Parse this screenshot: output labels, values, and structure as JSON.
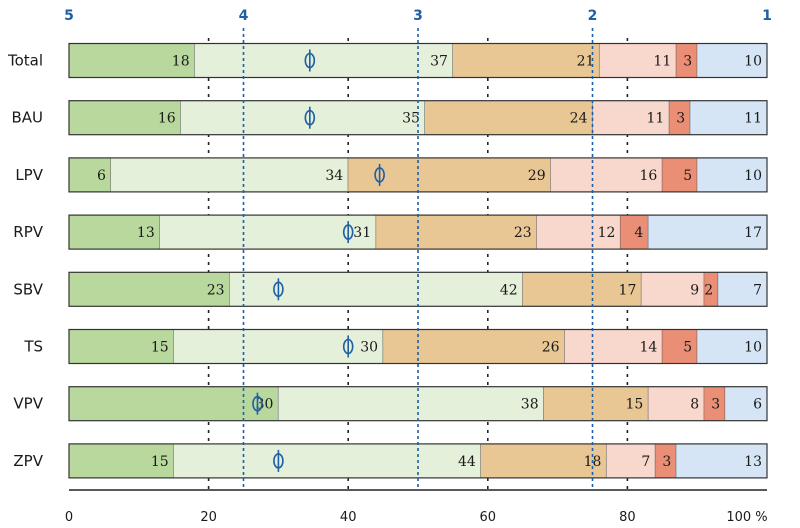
{
  "chart_data": {
    "type": "bar",
    "stacked": true,
    "orientation": "horizontal",
    "categories": [
      "Total",
      "BAU",
      "LPV",
      "RPV",
      "SBV",
      "TS",
      "VPV",
      "ZPV"
    ],
    "series": [
      {
        "values": [
          18,
          16,
          6,
          13,
          23,
          15,
          30,
          15
        ],
        "color": "#b8d89e"
      },
      {
        "values": [
          37,
          35,
          34,
          31,
          42,
          30,
          38,
          44
        ],
        "color": "#e4f0da"
      },
      {
        "values": [
          21,
          24,
          29,
          23,
          17,
          26,
          15,
          18
        ],
        "color": "#e8c795"
      },
      {
        "values": [
          11,
          11,
          16,
          12,
          9,
          14,
          8,
          7
        ],
        "color": "#f8d7cc"
      },
      {
        "values": [
          3,
          3,
          5,
          4,
          2,
          5,
          3,
          3
        ],
        "color": "#ea8f76"
      },
      {
        "values": [
          10,
          11,
          10,
          17,
          7,
          10,
          6,
          13
        ],
        "color": "#d5e5f5"
      }
    ],
    "means": [
      34.5,
      34.5,
      44.5,
      40,
      30,
      40,
      27,
      30
    ],
    "xlim": [
      0,
      100
    ],
    "xticks": [
      "0",
      "20",
      "40",
      "60",
      "80",
      "100 %"
    ],
    "scale_labels": [
      {
        "label": "5",
        "x": 0
      },
      {
        "label": "4",
        "x": 25
      },
      {
        "label": "3",
        "x": 50
      },
      {
        "label": "2",
        "x": 75
      },
      {
        "label": "1",
        "x": 100
      }
    ],
    "grid": true,
    "colors": {
      "scale_line": "#1f5fa6",
      "mean_marker": "#1f5fa6",
      "bar_edge": "#333333"
    }
  }
}
